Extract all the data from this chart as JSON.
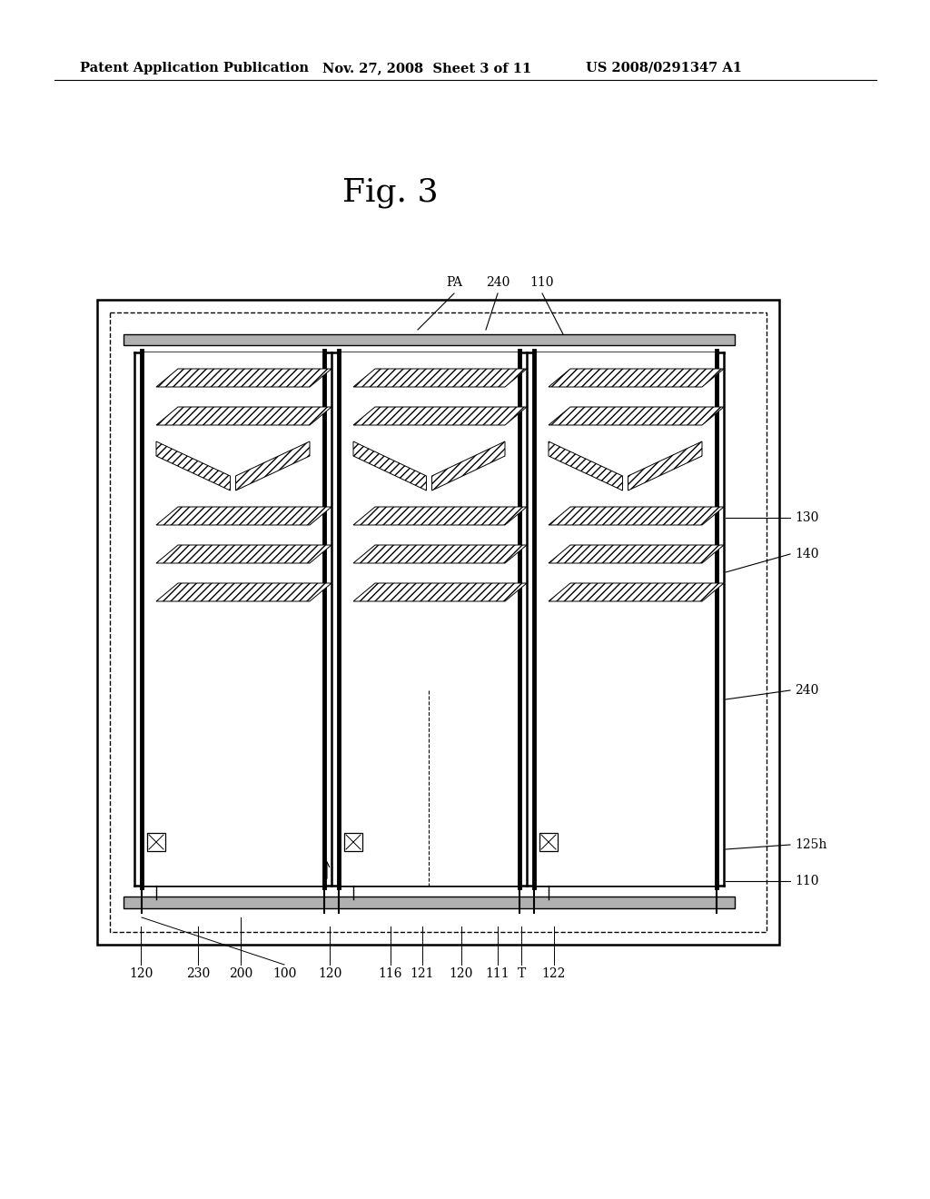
{
  "title": "Fig. 3",
  "header_left": "Patent Application Publication",
  "header_mid": "Nov. 27, 2008  Sheet 3 of 11",
  "header_right": "US 2008/0291347 A1",
  "bg_color": "#ffffff",
  "line_color": "#000000",
  "label_130": "130",
  "label_140": "140",
  "label_240": "240",
  "label_125h": "125h",
  "label_110": "110",
  "label_PA": "PA",
  "label_240t": "240",
  "label_110t": "110",
  "label_bottom": [
    "120",
    "230",
    "200",
    "100",
    "120",
    "116",
    "121",
    "120",
    "111",
    "T",
    "122"
  ]
}
